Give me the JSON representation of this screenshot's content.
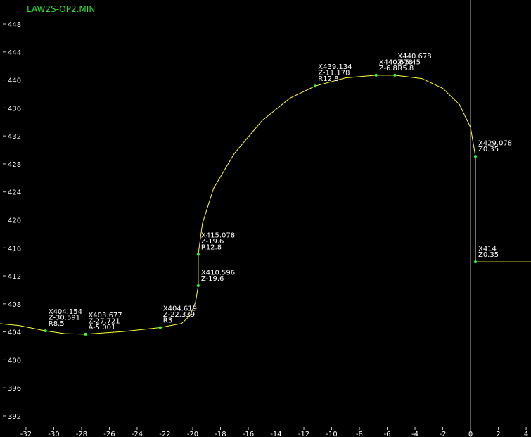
{
  "chart_data": {
    "type": "line",
    "title": "LAW2S-OP2.MIN",
    "xlim": [
      -33.87,
      4.35
    ],
    "ylim": [
      388.98,
      451.42
    ],
    "xticks": [
      -32,
      -30,
      -28,
      -26,
      -24,
      -22,
      -20,
      -18,
      -16,
      -14,
      -12,
      -10,
      -8,
      -6,
      -4,
      -2,
      0,
      2,
      4
    ],
    "yticks": [
      392,
      396,
      400,
      404,
      408,
      412,
      416,
      420,
      424,
      428,
      432,
      436,
      440,
      444,
      448
    ],
    "series": [
      {
        "color": "#ffff33",
        "x": [
          -33.87,
          -32.5,
          -30.591,
          -29.2,
          -27.721,
          -25,
          -22.339,
          -20.8,
          -20.2,
          -19.8,
          -19.6,
          -19.6,
          -19.3,
          -18.5,
          -17,
          -15,
          -13,
          -11.178,
          -9,
          -6.8,
          -5.45,
          -3.5,
          -2,
          -0.8,
          0,
          0.35,
          0.35,
          4.35
        ],
        "values": [
          405.17,
          404.9,
          404.154,
          403.75,
          403.677,
          404.05,
          404.619,
          405.2,
          406.3,
          408.2,
          410.596,
          415.078,
          419.5,
          424.5,
          429.5,
          434.2,
          437.4,
          439.134,
          440.3,
          440.678,
          440.678,
          440.2,
          438.8,
          436.5,
          433.2,
          429.078,
          414,
          414
        ]
      }
    ],
    "axis_color": "#cccccc",
    "point_color": "#33ff33",
    "points": [
      {
        "x": -30.591,
        "y": 404.154,
        "labels": [
          "X404.154",
          "Z-30.591",
          "R8.5"
        ]
      },
      {
        "x": -27.721,
        "y": 403.677,
        "labels": [
          "X403.677",
          "Z-27.721",
          "A-5.001"
        ]
      },
      {
        "x": -22.339,
        "y": 404.619,
        "labels": [
          "X404.619",
          "Z-22.339",
          "R3"
        ]
      },
      {
        "x": -19.6,
        "y": 410.596,
        "labels": [
          "X410.596",
          "Z-19.6"
        ]
      },
      {
        "x": -19.6,
        "y": 415.078,
        "labels": [
          "X415.078",
          "Z-19.6",
          "R12.8"
        ]
      },
      {
        "x": -11.178,
        "y": 439.134,
        "labels": [
          "X439.134",
          "Z-11.178",
          "R12.8"
        ]
      },
      {
        "x": -6.8,
        "y": 440.678,
        "labels": [
          "X440.678",
          "Z-6.8"
        ]
      },
      {
        "x": -5.45,
        "y": 440.678,
        "labels": [
          "X440.678",
          "Z-5.45",
          "R5.8"
        ]
      },
      {
        "x": 0.35,
        "y": 429.078,
        "labels": [
          "X429.078",
          "Z0.35"
        ]
      },
      {
        "x": 0.35,
        "y": 414,
        "labels": [
          "X414",
          "Z0.35"
        ]
      }
    ]
  }
}
